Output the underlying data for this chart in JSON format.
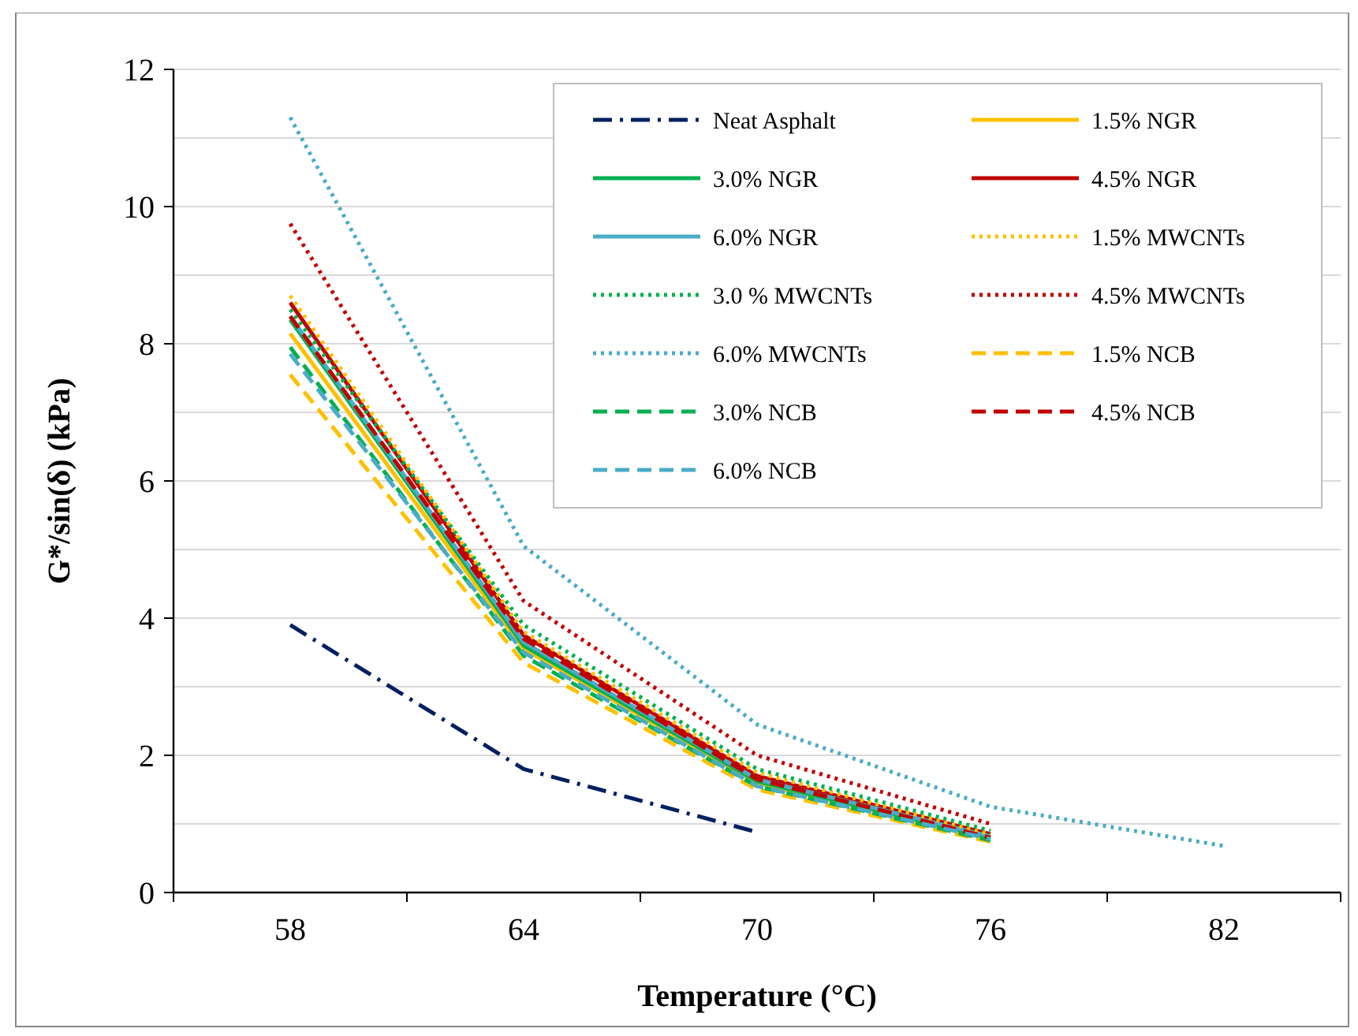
{
  "chart_data": {
    "type": "line",
    "xlabel": "Temperature (°C)",
    "ylabel": "G*/sin(δ) (kPa)",
    "categories": [
      "58",
      "64",
      "70",
      "76",
      "82"
    ],
    "ylim": [
      0,
      12
    ],
    "yticks": [
      0,
      {
        "value": 1,
        "label": null
      },
      2,
      {
        "value": 3,
        "label": null
      },
      4,
      {
        "value": 5,
        "label": null
      },
      6,
      {
        "value": 7,
        "label": null
      },
      8,
      {
        "value": 9,
        "label": null
      },
      10,
      {
        "value": 11,
        "label": null
      },
      12
    ],
    "grid": "y",
    "legend": "top right",
    "marker": "none",
    "series": [
      {
        "name": "Neat Asphalt",
        "color": "#002060",
        "line_style": "dashdot",
        "values": [
          3.9,
          1.8,
          0.88,
          null,
          null
        ]
      },
      {
        "name": "1.5% NGR",
        "color": "#ffc000",
        "line_style": "solid",
        "values": [
          8.15,
          3.55,
          1.6,
          0.78,
          null
        ]
      },
      {
        "name": "3.0% NGR",
        "color": "#00b050",
        "line_style": "solid",
        "values": [
          8.35,
          3.6,
          1.62,
          0.8,
          null
        ]
      },
      {
        "name": "4.5% NGR",
        "color": "#c00000",
        "line_style": "solid",
        "values": [
          8.6,
          3.75,
          1.7,
          0.85,
          null
        ]
      },
      {
        "name": "6.0% NGR",
        "color": "#4bacc6",
        "line_style": "solid",
        "values": [
          8.4,
          3.65,
          1.65,
          0.82,
          null
        ]
      },
      {
        "name": "1.5% MWCNTs",
        "color": "#ffc000",
        "line_style": "dotted",
        "values": [
          8.7,
          3.8,
          1.75,
          0.85,
          null
        ]
      },
      {
        "name": "3.0 % MWCNTs",
        "color": "#00b050",
        "line_style": "dotted",
        "values": [
          8.5,
          3.9,
          1.8,
          0.9,
          null
        ]
      },
      {
        "name": "4.5% MWCNTs",
        "color": "#c00000",
        "line_style": "dotted",
        "values": [
          9.75,
          4.25,
          2.0,
          1.0,
          null
        ]
      },
      {
        "name": "6.0% MWCNTs",
        "color": "#4bacc6",
        "line_style": "dotted",
        "values": [
          11.3,
          5.05,
          2.45,
          1.25,
          0.68
        ]
      },
      {
        "name": "1.5% NCB",
        "color": "#ffc000",
        "line_style": "dashed",
        "values": [
          7.55,
          3.35,
          1.5,
          0.74,
          null
        ]
      },
      {
        "name": "3.0% NCB",
        "color": "#00b050",
        "line_style": "dashed",
        "values": [
          7.95,
          3.45,
          1.55,
          0.76,
          null
        ]
      },
      {
        "name": "4.5% NCB",
        "color": "#c00000",
        "line_style": "dashed",
        "values": [
          8.4,
          3.7,
          1.65,
          0.8,
          null
        ]
      },
      {
        "name": "6.0% NCB",
        "color": "#4bacc6",
        "line_style": "dashed",
        "values": [
          7.85,
          3.5,
          1.55,
          0.78,
          null
        ]
      }
    ]
  }
}
